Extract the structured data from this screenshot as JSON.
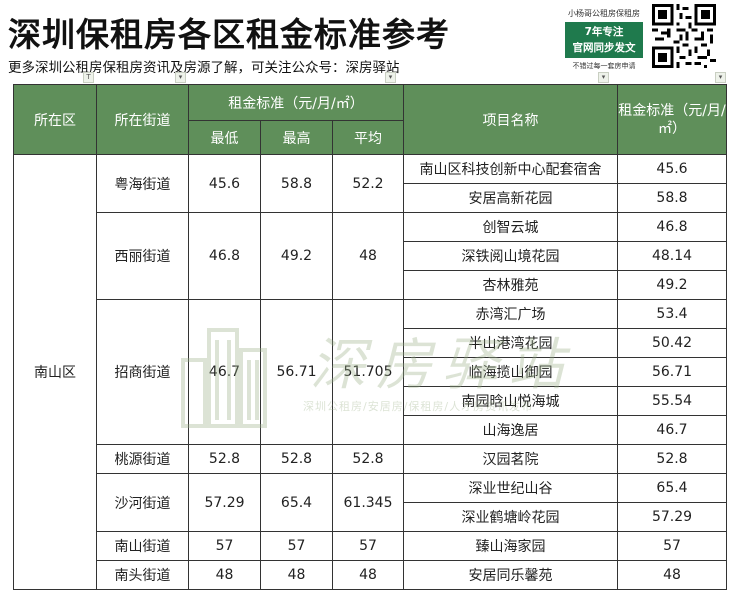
{
  "header": {
    "title": "深圳保租房各区租金标准参考",
    "subtitle": "更多深圳公租房保租房资讯及房源了解，可关注公众号：深房驿站"
  },
  "promo": {
    "top_text": "小杨哥公租房保租房",
    "badge_line1": "7年专注",
    "badge_line2": "官网同步发文",
    "bottom_text": "不错过每一套房申请"
  },
  "table": {
    "headers": {
      "district": "所在区",
      "street": "所在街道",
      "rent_std": "租金标准（元/月/㎡）",
      "min": "最低",
      "max": "最高",
      "avg": "平均",
      "project": "项目名称",
      "rent_std_right": "租金标准（元/月/㎡）"
    },
    "district": "南山区",
    "streets": [
      {
        "name": "粤海街道",
        "min": "45.6",
        "max": "58.8",
        "avg": "52.2",
        "projects": [
          {
            "name": "南山区科技创新中心配套宿舍",
            "rent": "45.6"
          },
          {
            "name": "安居高新花园",
            "rent": "58.8"
          }
        ]
      },
      {
        "name": "西丽街道",
        "min": "46.8",
        "max": "49.2",
        "avg": "48",
        "projects": [
          {
            "name": "创智云城",
            "rent": "46.8"
          },
          {
            "name": "深铁阅山境花园",
            "rent": "48.14"
          },
          {
            "name": "杏林雅苑",
            "rent": "49.2"
          }
        ]
      },
      {
        "name": "招商街道",
        "min": "46.7",
        "max": "56.71",
        "avg": "51.705",
        "projects": [
          {
            "name": "赤湾汇广场",
            "rent": "53.4"
          },
          {
            "name": "半山港湾花园",
            "rent": "50.42"
          },
          {
            "name": "临海揽山御园",
            "rent": "56.71"
          },
          {
            "name": "南园晗山悦海城",
            "rent": "55.54"
          },
          {
            "name": "山海逸居",
            "rent": "46.7"
          }
        ]
      },
      {
        "name": "桃源街道",
        "min": "52.8",
        "max": "52.8",
        "avg": "52.8",
        "projects": [
          {
            "name": "汉园茗院",
            "rent": "52.8"
          }
        ]
      },
      {
        "name": "沙河街道",
        "min": "57.29",
        "max": "65.4",
        "avg": "61.345",
        "projects": [
          {
            "name": "深业世纪山谷",
            "rent": "65.4"
          },
          {
            "name": "深业鹤塘岭花园",
            "rent": "57.29"
          }
        ]
      },
      {
        "name": "南山街道",
        "min": "57",
        "max": "57",
        "avg": "57",
        "projects": [
          {
            "name": "臻山海家园",
            "rent": "57"
          }
        ]
      },
      {
        "name": "南头街道",
        "min": "48",
        "max": "48",
        "avg": "48",
        "projects": [
          {
            "name": "安居同乐馨苑",
            "rent": "48"
          }
        ]
      }
    ]
  },
  "watermark": {
    "text": "深房驿站",
    "subtext": "深圳公租房/安居房/保租房/人才房资讯发布"
  },
  "colors": {
    "header_bg": "#5f8f5a",
    "badge_bg": "#1f7a4d"
  }
}
